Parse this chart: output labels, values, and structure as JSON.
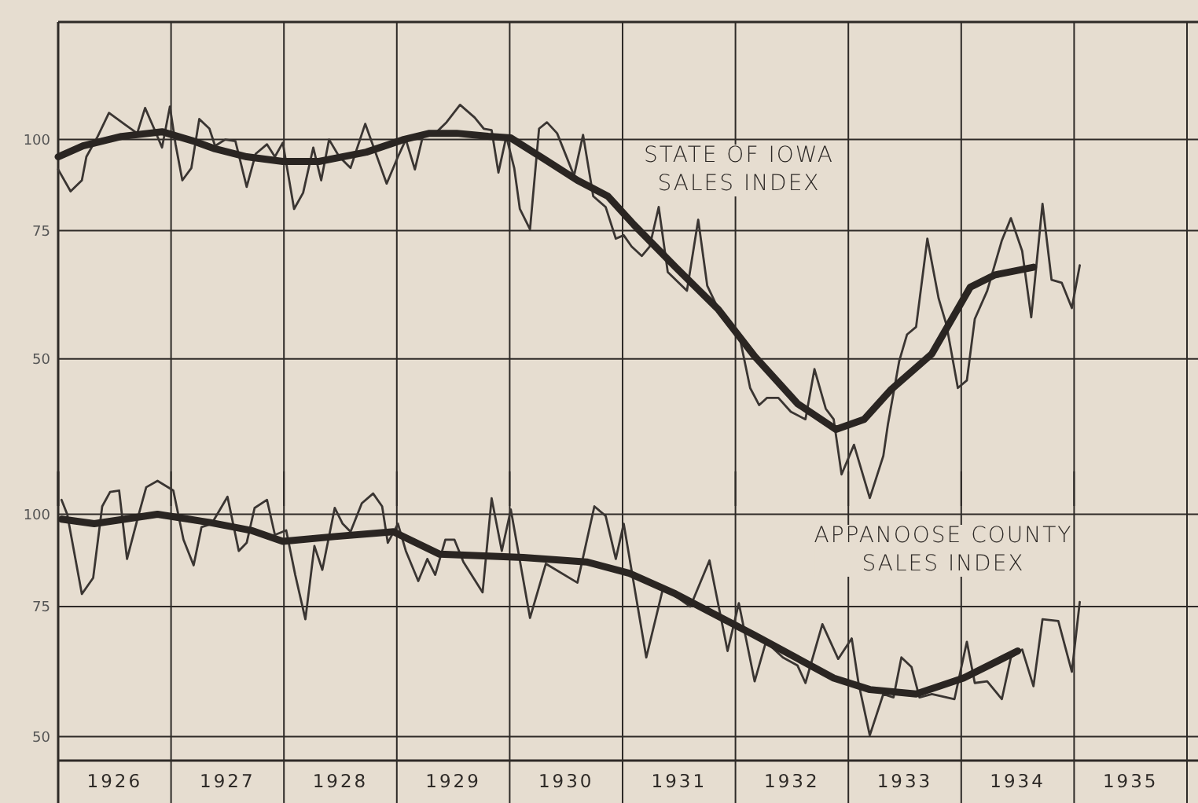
{
  "chart_data": [
    {
      "type": "line",
      "tick_labels": "y",
      "annotations": [
        "STATE OF IOWA SALES INDEX"
      ],
      "xlim": [
        1926,
        1936
      ],
      "xticks": [
        {
          "value": 1926,
          "label": null
        },
        {
          "value": 1927,
          "label": null
        },
        {
          "value": 1928,
          "label": null
        },
        {
          "value": 1929,
          "label": null
        },
        {
          "value": 1930,
          "label": null
        },
        {
          "value": 1931,
          "label": null
        },
        {
          "value": 1932,
          "label": null
        },
        {
          "value": 1933,
          "label": null
        },
        {
          "value": 1934,
          "label": null
        },
        {
          "value": 1935,
          "label": null
        },
        {
          "value": 1936,
          "label": null
        }
      ],
      "ylim": [
        31.4,
        145
      ],
      "yticks": [
        50,
        75,
        100
      ],
      "log": true,
      "grid": true,
      "line_style": "solid",
      "series": [
        {
          "color": "#3a3532",
          "x": [
            1926.0,
            1926.11,
            1926.21,
            1926.25,
            1926.35,
            1926.45,
            1926.6,
            1926.7,
            1926.77,
            1926.85,
            1926.92,
            1926.99,
            1927.04,
            1927.1,
            1927.18,
            1927.25,
            1927.34,
            1927.39,
            1927.48,
            1927.57,
            1927.67,
            1927.75,
            1927.85,
            1927.92,
            1927.99,
            1928.09,
            1928.17,
            1928.26,
            1928.33,
            1928.4,
            1928.49,
            1928.59,
            1928.72,
            1928.8,
            1928.91,
            1929.01,
            1929.08,
            1929.16,
            1929.23,
            1929.34,
            1929.44,
            1929.56,
            1929.69,
            1929.77,
            1929.84,
            1929.9,
            1929.97,
            1930.04,
            1930.09,
            1930.18,
            1930.26,
            1930.33,
            1930.42,
            1930.57,
            1930.65,
            1930.74,
            1930.85,
            1930.94,
            1931.01,
            1931.08,
            1931.17,
            1931.24,
            1931.32,
            1931.4,
            1931.57,
            1931.67,
            1931.75,
            1931.89,
            1932.03,
            1932.13,
            1932.21,
            1932.28,
            1932.38,
            1932.49,
            1932.62,
            1932.7,
            1932.8,
            1932.87,
            1932.94,
            1933.05,
            1933.19,
            1933.31,
            1933.35,
            1933.45,
            1933.52,
            1933.6,
            1933.7,
            1933.8,
            1933.87,
            1933.97,
            1934.05,
            1934.12,
            1934.23,
            1934.36,
            1934.44,
            1934.54,
            1934.62,
            1934.72,
            1934.8,
            1934.89,
            1934.98,
            1935.05
          ],
          "values": [
            91.0,
            84.9,
            87.9,
            94.7,
            101.0,
            108.8,
            104.6,
            102.0,
            110.5,
            103.5,
            97.5,
            111.0,
            98.5,
            87.9,
            91.4,
            106.7,
            103.5,
            98.0,
            100,
            99.5,
            86.1,
            95.6,
            98.5,
            94.7,
            99.0,
            80.3,
            84.5,
            97.5,
            87.9,
            100,
            94.7,
            91.4,
            105.1,
            97.1,
            87.0,
            94.7,
            100,
            91.0,
            101.0,
            102.0,
            105.6,
            111.6,
            107.2,
            103.5,
            103.0,
            90.1,
            101.0,
            91.4,
            80.3,
            75.3,
            103.5,
            105.6,
            102.0,
            89.2,
            101.5,
            83.6,
            80.8,
            73.1,
            73.9,
            71.3,
            69.2,
            71.3,
            80.8,
            65.8,
            62.0,
            77.6,
            63.0,
            56.7,
            54.2,
            45.6,
            43.2,
            44.2,
            44.2,
            42.3,
            41.3,
            48.4,
            42.7,
            41.3,
            34.7,
            38.1,
            32.2,
            36.8,
            40.6,
            49.6,
            54.0,
            55.3,
            73.1,
            60.5,
            55.6,
            45.6,
            46.7,
            56.7,
            62.0,
            72.7,
            78.0,
            70.3,
            57.0,
            81.6,
            64.2,
            63.6,
            58.7,
            67.2
          ]
        },
        {
          "color": "#2a2522",
          "x": [
            1926.0,
            1926.22,
            1926.56,
            1926.92,
            1927.2,
            1927.39,
            1927.67,
            1927.99,
            1928.31,
            1928.73,
            1929.06,
            1929.29,
            1929.53,
            1929.81,
            1930.01,
            1930.32,
            1930.6,
            1930.87,
            1931.1,
            1931.47,
            1931.85,
            1932.17,
            1932.55,
            1932.89,
            1933.14,
            1933.38,
            1933.74,
            1934.08,
            1934.3,
            1934.64
          ],
          "values": [
            94.7,
            98.0,
            101.0,
            102.5,
            99.5,
            97.1,
            94.7,
            93.3,
            93.3,
            96.1,
            100,
            102.0,
            102.0,
            101.0,
            100.5,
            93.7,
            87.9,
            83.6,
            76.4,
            66.8,
            58.4,
            50.4,
            43.4,
            40.0,
            41.3,
            45.4,
            50.8,
            62.7,
            65.2,
            66.8
          ]
        }
      ]
    },
    {
      "type": "line",
      "annotations": [
        "APPANOOSE COUNTY SALES INDEX"
      ],
      "xlim": [
        1926,
        1936
      ],
      "xticks": [
        {
          "value": 1926,
          "label": null
        },
        {
          "value": 1926.5,
          "label": "1926"
        },
        {
          "value": 1927,
          "label": null
        },
        {
          "value": 1927.5,
          "label": "1927"
        },
        {
          "value": 1928,
          "label": null
        },
        {
          "value": 1928.5,
          "label": "1928"
        },
        {
          "value": 1929,
          "label": null
        },
        {
          "value": 1929.5,
          "label": "1929"
        },
        {
          "value": 1930,
          "label": null
        },
        {
          "value": 1930.5,
          "label": "1930"
        },
        {
          "value": 1931,
          "label": null
        },
        {
          "value": 1931.5,
          "label": "1931"
        },
        {
          "value": 1932,
          "label": null
        },
        {
          "value": 1932.5,
          "label": "1932"
        },
        {
          "value": 1933,
          "label": null
        },
        {
          "value": 1933.5,
          "label": "1933"
        },
        {
          "value": 1934,
          "label": null
        },
        {
          "value": 1934.5,
          "label": "1934"
        },
        {
          "value": 1935,
          "label": null
        },
        {
          "value": 1935.5,
          "label": "1935"
        },
        {
          "value": 1936,
          "label": null
        }
      ],
      "ylim": [
        46.4,
        114.3
      ],
      "yticks": [
        50,
        75,
        100
      ],
      "log": true,
      "grid": true,
      "line_style": "solid",
      "series": [
        {
          "color": "#3a3532",
          "x": [
            1926.03,
            1926.08,
            1926.21,
            1926.31,
            1926.39,
            1926.46,
            1926.54,
            1926.61,
            1926.71,
            1926.78,
            1926.88,
            1927.02,
            1927.11,
            1927.2,
            1927.27,
            1927.36,
            1927.5,
            1927.6,
            1927.67,
            1927.74,
            1927.85,
            1927.92,
            1928.02,
            1928.1,
            1928.19,
            1928.27,
            1928.34,
            1928.45,
            1928.52,
            1928.59,
            1928.69,
            1928.79,
            1928.87,
            1928.92,
            1929.01,
            1929.08,
            1929.19,
            1929.27,
            1929.34,
            1929.43,
            1929.51,
            1929.59,
            1929.76,
            1929.84,
            1929.93,
            1930.01,
            1930.18,
            1930.32,
            1930.6,
            1930.75,
            1930.85,
            1930.94,
            1931.01,
            1931.21,
            1931.36,
            1931.6,
            1931.77,
            1931.93,
            1932.03,
            1932.17,
            1932.27,
            1932.42,
            1932.55,
            1932.62,
            1932.77,
            1932.91,
            1933.03,
            1933.09,
            1933.19,
            1933.31,
            1933.4,
            1933.47,
            1933.56,
            1933.63,
            1933.74,
            1933.94,
            1934.05,
            1934.12,
            1934.23,
            1934.36,
            1934.44,
            1934.54,
            1934.64,
            1934.72,
            1934.86,
            1934.98,
            1935.05
          ],
          "values": [
            104.6,
            100,
            78.0,
            82.0,
            102.5,
            107.2,
            107.7,
            87.0,
            99.5,
            108.8,
            111.0,
            107.7,
            92.4,
            85.3,
            96.1,
            97.1,
            105.6,
            89.2,
            91.5,
            102.0,
            104.6,
            93.8,
            95.1,
            82.8,
            72.1,
            90.6,
            84.1,
            102.0,
            97.1,
            94.7,
            103.5,
            106.7,
            102.5,
            91.5,
            97.1,
            89.2,
            81.2,
            87.0,
            82.8,
            92.4,
            92.4,
            86.2,
            78.4,
            105.1,
            89.2,
            101.5,
            72.4,
            85.7,
            80.8,
            102.5,
            99.5,
            87.0,
            97.1,
            64.0,
            79.6,
            75.0,
            86.6,
            65.3,
            75.8,
            59.4,
            67.2,
            64.0,
            62.4,
            59.1,
            71.0,
            63.7,
            67.9,
            59.1,
            50.2,
            57.1,
            56.5,
            64.0,
            62.1,
            56.5,
            57.1,
            56.2,
            67.2,
            59.1,
            59.4,
            56.2,
            64.0,
            65.6,
            58.5,
            72.1,
            71.7,
            61.2,
            76.1
          ]
        },
        {
          "color": "#2a2522",
          "x": [
            1926.03,
            1926.32,
            1926.88,
            1927.34,
            1927.71,
            1927.99,
            1928.45,
            1928.97,
            1929.38,
            1930.12,
            1930.68,
            1931.06,
            1931.47,
            1932.17,
            1932.87,
            1933.19,
            1933.6,
            1934.02,
            1934.5
          ],
          "values": [
            98.5,
            97.1,
            100,
            97.5,
            95.1,
            91.9,
            93.3,
            94.7,
            88.3,
            87.4,
            86.2,
            83.2,
            78.0,
            68.6,
            60.0,
            57.9,
            57.1,
            60.0,
            65.3
          ]
        }
      ]
    }
  ]
}
